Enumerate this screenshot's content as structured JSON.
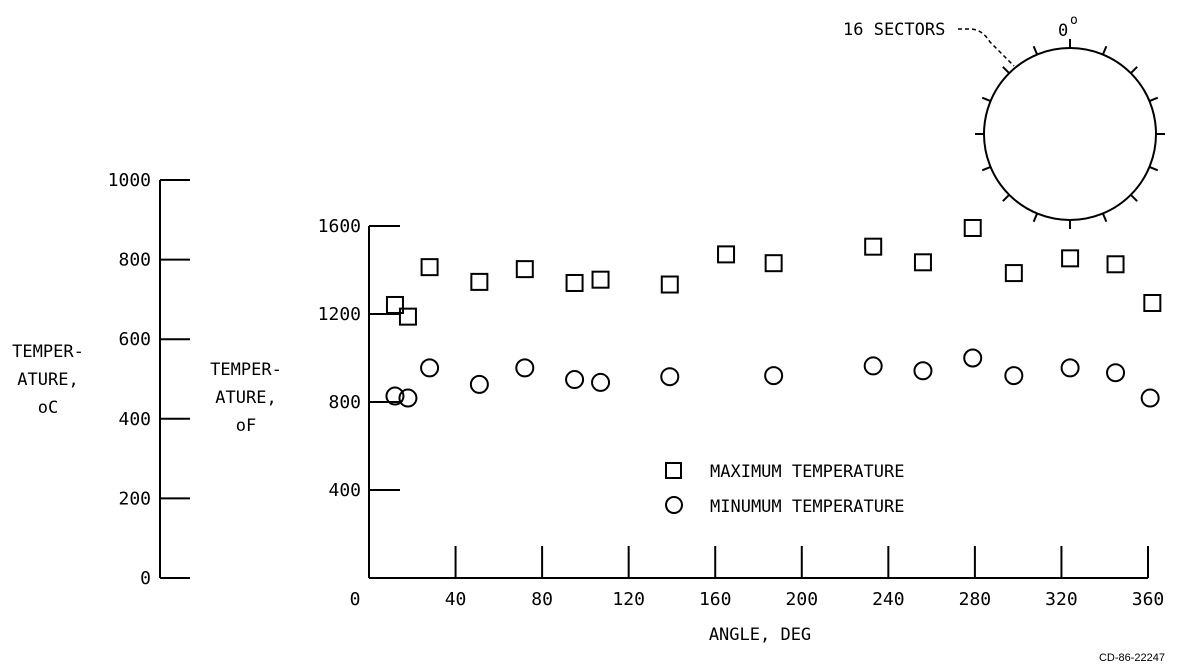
{
  "chart_data": {
    "type": "scatter",
    "xlabel": "ANGLE, DEG",
    "xlim": [
      0,
      360
    ],
    "x_ticks": [
      0,
      40,
      80,
      120,
      160,
      200,
      240,
      280,
      320,
      360
    ],
    "ylabel_f": [
      "TEMPER-",
      "ATURE,",
      "oF"
    ],
    "ylim_f": [
      0,
      1600
    ],
    "y_ticks_f": [
      400,
      800,
      1200,
      1600
    ],
    "ylabel_c": [
      "TEMPER-",
      "ATURE,",
      "oC"
    ],
    "ylim_c": [
      0,
      1000
    ],
    "y_ticks_c": [
      0,
      200,
      400,
      600,
      800,
      1000
    ],
    "series": [
      {
        "name": "MAXIMUM TEMPERATURE",
        "marker": "square",
        "points": [
          {
            "x": 12,
            "y": 1241
          },
          {
            "x": 18,
            "y": 1188
          },
          {
            "x": 28,
            "y": 1413
          },
          {
            "x": 51,
            "y": 1346
          },
          {
            "x": 72,
            "y": 1404
          },
          {
            "x": 95,
            "y": 1341
          },
          {
            "x": 107,
            "y": 1356
          },
          {
            "x": 139,
            "y": 1334
          },
          {
            "x": 165,
            "y": 1471
          },
          {
            "x": 187,
            "y": 1431
          },
          {
            "x": 233,
            "y": 1506
          },
          {
            "x": 256,
            "y": 1435
          },
          {
            "x": 279,
            "y": 1591
          },
          {
            "x": 298,
            "y": 1386
          },
          {
            "x": 324,
            "y": 1453
          },
          {
            "x": 345,
            "y": 1426
          },
          {
            "x": 362,
            "y": 1250
          }
        ]
      },
      {
        "name": "MINUMUM TEMPERATURE",
        "marker": "circle",
        "points": [
          {
            "x": 12,
            "y": 827
          },
          {
            "x": 18,
            "y": 818
          },
          {
            "x": 28,
            "y": 955
          },
          {
            "x": 51,
            "y": 880
          },
          {
            "x": 72,
            "y": 955
          },
          {
            "x": 95,
            "y": 902
          },
          {
            "x": 107,
            "y": 889
          },
          {
            "x": 139,
            "y": 915
          },
          {
            "x": 187,
            "y": 920
          },
          {
            "x": 233,
            "y": 964
          },
          {
            "x": 256,
            "y": 942
          },
          {
            "x": 279,
            "y": 1000
          },
          {
            "x": 298,
            "y": 920
          },
          {
            "x": 324,
            "y": 955
          },
          {
            "x": 345,
            "y": 933
          },
          {
            "x": 361,
            "y": 818
          }
        ]
      }
    ],
    "legend_placement": "center",
    "inset": {
      "label": "16 SECTORS",
      "angle_label": "0",
      "angle_label_sup": "o",
      "sectors": 16
    },
    "reference": "CD-86-22247"
  }
}
